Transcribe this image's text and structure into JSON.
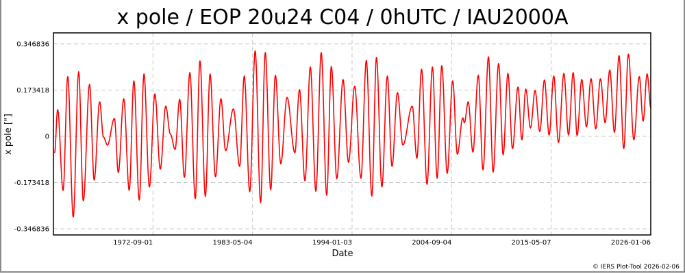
{
  "chart_data": {
    "type": "line",
    "title": "x pole / EOP 20u24 C04 / 0hUTC / IAU2000A",
    "xlabel": "Date",
    "ylabel": "x pole [\"]",
    "footer": "© IERS Plot-Tool 2026-02-06",
    "xlim": [
      "1962-01-01",
      "2026-01-06"
    ],
    "ylim": [
      -0.37,
      0.388
    ],
    "x_ticks": [
      "1972-09-01",
      "1983-05-04",
      "1994-01-03",
      "2004-09-04",
      "2015-05-07",
      "2026-01-06"
    ],
    "y_ticks": [
      0.346836,
      0.173418,
      0,
      -0.173418,
      -0.346836
    ],
    "y_tick_labels": [
      "0.346836",
      "0.173418",
      "0",
      "-0.173418",
      "-0.346836"
    ],
    "grid": true,
    "line_color": "#ff0000",
    "series": [
      {
        "points": [
          [
            "1962-02",
            -0.062
          ],
          [
            "1962-06",
            0.1
          ],
          [
            "1963-01",
            -0.203
          ],
          [
            "1963-07",
            0.224
          ],
          [
            "1964-02",
            -0.303
          ],
          [
            "1964-09",
            0.242
          ],
          [
            "1965-03",
            -0.242
          ],
          [
            "1965-11",
            0.195
          ],
          [
            "1966-05",
            -0.164
          ],
          [
            "1966-12",
            0.129
          ],
          [
            "1967-05",
            -0.003
          ],
          [
            "1967-10",
            -0.033
          ],
          [
            "1968-07",
            0.067
          ],
          [
            "1968-12",
            -0.136
          ],
          [
            "1969-07",
            0.141
          ],
          [
            "1970-02",
            -0.203
          ],
          [
            "1970-08",
            0.208
          ],
          [
            "1971-03",
            -0.239
          ],
          [
            "1971-09",
            0.234
          ],
          [
            "1972-04",
            -0.19
          ],
          [
            "1972-11",
            0.159
          ],
          [
            "1973-06",
            -0.123
          ],
          [
            "1974-01",
            0.113
          ],
          [
            "1974-07",
            0.008
          ],
          [
            "1975-01",
            -0.049
          ],
          [
            "1975-07",
            0.139
          ],
          [
            "1976-01",
            -0.154
          ],
          [
            "1976-08",
            0.239
          ],
          [
            "1977-03",
            -0.234
          ],
          [
            "1977-09",
            0.283
          ],
          [
            "1978-04",
            -0.226
          ],
          [
            "1978-10",
            0.234
          ],
          [
            "1979-05",
            -0.152
          ],
          [
            "1979-12",
            0.141
          ],
          [
            "1980-06",
            -0.054
          ],
          [
            "1981-04",
            0.103
          ],
          [
            "1981-12",
            -0.113
          ],
          [
            "1982-06",
            0.226
          ],
          [
            "1983-01",
            -0.208
          ],
          [
            "1983-08",
            0.321
          ],
          [
            "1984-03",
            -0.249
          ],
          [
            "1984-09",
            0.314
          ],
          [
            "1985-04",
            -0.201
          ],
          [
            "1985-10",
            0.229
          ],
          [
            "1986-05",
            -0.103
          ],
          [
            "1987-01",
            0.146
          ],
          [
            "1987-11",
            -0.062
          ],
          [
            "1988-05",
            0.175
          ],
          [
            "1988-12",
            -0.167
          ],
          [
            "1989-07",
            0.26
          ],
          [
            "1990-02",
            -0.206
          ],
          [
            "1990-09",
            0.314
          ],
          [
            "1991-04",
            -0.221
          ],
          [
            "1991-10",
            0.262
          ],
          [
            "1992-05",
            -0.159
          ],
          [
            "1993-01",
            0.213
          ],
          [
            "1993-08",
            -0.098
          ],
          [
            "1994-04",
            0.188
          ],
          [
            "1994-12",
            -0.157
          ],
          [
            "1995-07",
            0.285
          ],
          [
            "1996-02",
            -0.224
          ],
          [
            "1996-08",
            0.296
          ],
          [
            "1997-03",
            -0.19
          ],
          [
            "1997-10",
            0.226
          ],
          [
            "1998-04",
            -0.113
          ],
          [
            "1998-11",
            0.164
          ],
          [
            "1999-06",
            -0.033
          ],
          [
            "2000-06",
            0.113
          ],
          [
            "2000-12",
            -0.082
          ],
          [
            "2001-06",
            0.252
          ],
          [
            "2002-01",
            -0.18
          ],
          [
            "2002-08",
            0.26
          ],
          [
            "2003-02",
            -0.157
          ],
          [
            "2003-08",
            0.265
          ],
          [
            "2004-03",
            -0.139
          ],
          [
            "2004-10",
            0.208
          ],
          [
            "2005-04",
            -0.067
          ],
          [
            "2005-11",
            0.069
          ],
          [
            "2006-01",
            0.051
          ],
          [
            "2006-06",
            0.129
          ],
          [
            "2006-12",
            -0.059
          ],
          [
            "2007-07",
            0.229
          ],
          [
            "2008-01",
            -0.126
          ],
          [
            "2008-08",
            0.298
          ],
          [
            "2009-02",
            -0.134
          ],
          [
            "2009-09",
            0.273
          ],
          [
            "2010-03",
            -0.069
          ],
          [
            "2010-09",
            0.236
          ],
          [
            "2011-03",
            -0.046
          ],
          [
            "2011-10",
            0.185
          ],
          [
            "2012-03",
            -0.013
          ],
          [
            "2012-08",
            0.177
          ],
          [
            "2013-02",
            0.031
          ],
          [
            "2013-08",
            0.172
          ],
          [
            "2014-02",
            0.018
          ],
          [
            "2014-08",
            0.211
          ],
          [
            "2015-02",
            0.005
          ],
          [
            "2015-08",
            0.226
          ],
          [
            "2016-02",
            -0.023
          ],
          [
            "2016-09",
            0.236
          ],
          [
            "2017-03",
            0.005
          ],
          [
            "2017-09",
            0.239
          ],
          [
            "2018-02",
            0.003
          ],
          [
            "2018-08",
            0.213
          ],
          [
            "2019-02",
            0.036
          ],
          [
            "2019-08",
            0.216
          ],
          [
            "2020-02",
            0.028
          ],
          [
            "2020-08",
            0.216
          ],
          [
            "2021-02",
            0.051
          ],
          [
            "2021-08",
            0.249
          ],
          [
            "2022-02",
            0.015
          ],
          [
            "2022-08",
            0.303
          ],
          [
            "2023-02",
            -0.046
          ],
          [
            "2023-08",
            0.308
          ],
          [
            "2024-03",
            -0.013
          ],
          [
            "2024-10",
            0.224
          ],
          [
            "2025-03",
            0.057
          ],
          [
            "2025-08",
            0.234
          ],
          [
            "2026-01",
            0.105
          ]
        ]
      }
    ]
  }
}
